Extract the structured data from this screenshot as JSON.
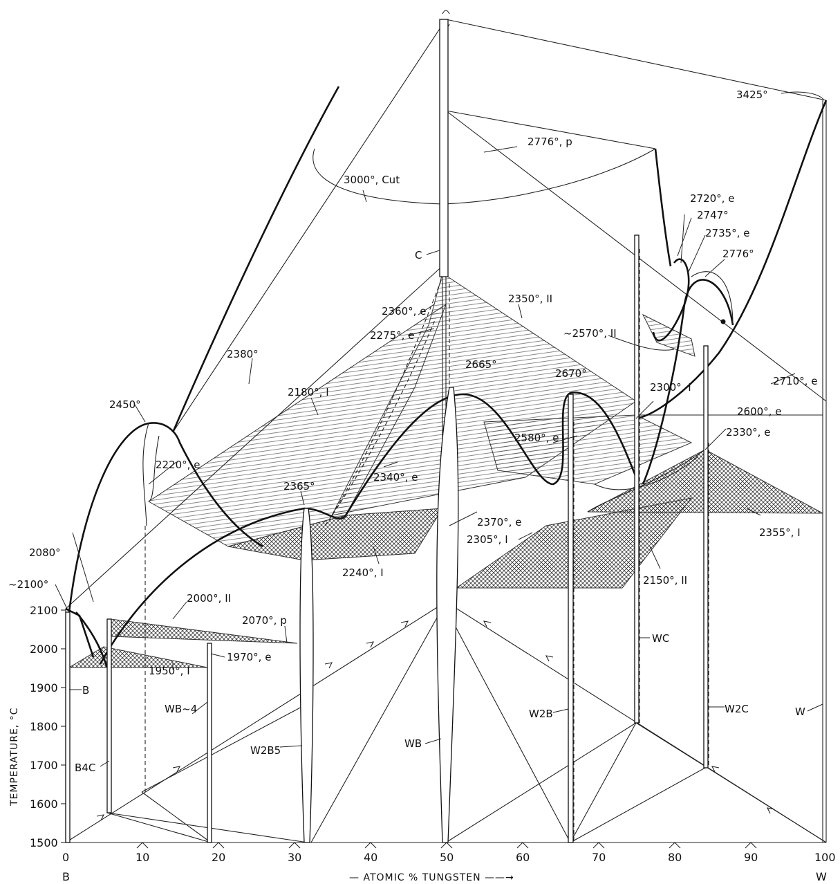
{
  "axes": {
    "y_title": "TEMPERATURE, °C",
    "x_title": "— ATOMIC % TUNGSTEN ——→",
    "y_ticks": [
      "1500",
      "1600",
      "1700",
      "1800",
      "1900",
      "2000",
      "2100"
    ],
    "x_ticks": [
      "0",
      "10",
      "20",
      "30",
      "40",
      "50",
      "60",
      "70",
      "80",
      "90",
      "100"
    ],
    "left_element": "B",
    "right_element": "W"
  },
  "labels": {
    "t3425": "3425°",
    "t2776p": "2776°, p",
    "t3000cut": "3000°, Cut",
    "c": "C",
    "t2720e": "2720°, e",
    "t2747": "2747°",
    "t2735e": "2735°, e",
    "t2776": "2776°",
    "t2350II": "2350°, II",
    "t2360e": "2360°, e",
    "t2275e": "2275°, e",
    "t2570II": "~2570°, II",
    "t2380": "2380°",
    "t2665": "2665°",
    "t2670": "2670°",
    "t2710e": "2710°, e",
    "t2180I": "2180°, I",
    "t2300I": "2300°, I",
    "t2600e": "2600°, e",
    "t2450": "2450°",
    "t2580e": "2580°, e",
    "t2330e": "2330°, e",
    "t2220e": "2220°, e",
    "t2340e": "2340°, e",
    "t2365": "2365°",
    "t2370e": "2370°, e",
    "t2355I": "2355°, I",
    "t2305I": "2305°, I",
    "t2240I": "2240°, I",
    "t2150II": "2150°, II",
    "t2080": "2080°",
    "t2100": "~2100°",
    "t2000II": "2000°, II",
    "t2070p": "2070°, p",
    "t1970e": "1970°, e",
    "t1950I": "1950°, I",
    "wc": "WC",
    "b": "B",
    "wb4": "WB~4",
    "w2b": "W2B",
    "w2c": "W2C",
    "w": "W",
    "b4c": "B4C",
    "w2b5": "W2B5",
    "wb": "WB"
  }
}
